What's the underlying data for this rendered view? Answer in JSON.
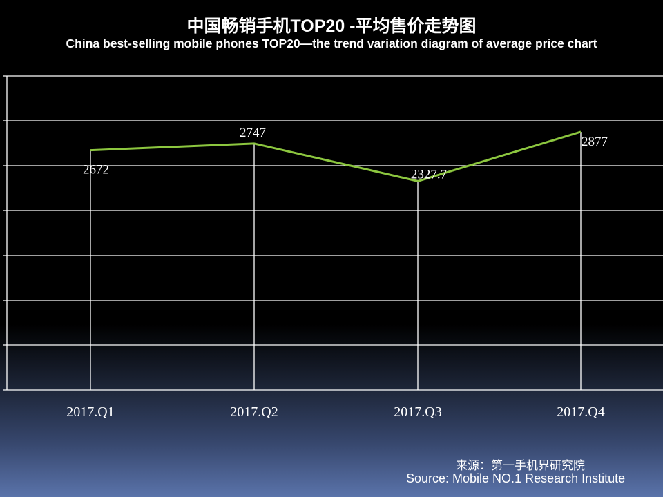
{
  "chart_data": {
    "type": "line",
    "title": "中国畅销手机TOP20 -平均售价走势图",
    "subtitle": "China best-selling mobile phones TOP20—the trend variation diagram of average price chart",
    "categories": [
      "2017.Q1",
      "2017.Q2",
      "2017.Q3",
      "2017.Q4"
    ],
    "series": [
      {
        "values": [
          2672,
          2747,
          2327.7,
          2877
        ],
        "labels": [
          "2672",
          "2747",
          "2327.7",
          "2877"
        ],
        "color": "#8cc63f"
      }
    ],
    "ylim": [
      0,
      3500
    ],
    "ytick_step": 500,
    "grid": true,
    "legend": "none"
  },
  "source": {
    "cn": "来源：第一手机界研究院",
    "en": "Source: Mobile NO.1 Research Institute"
  }
}
